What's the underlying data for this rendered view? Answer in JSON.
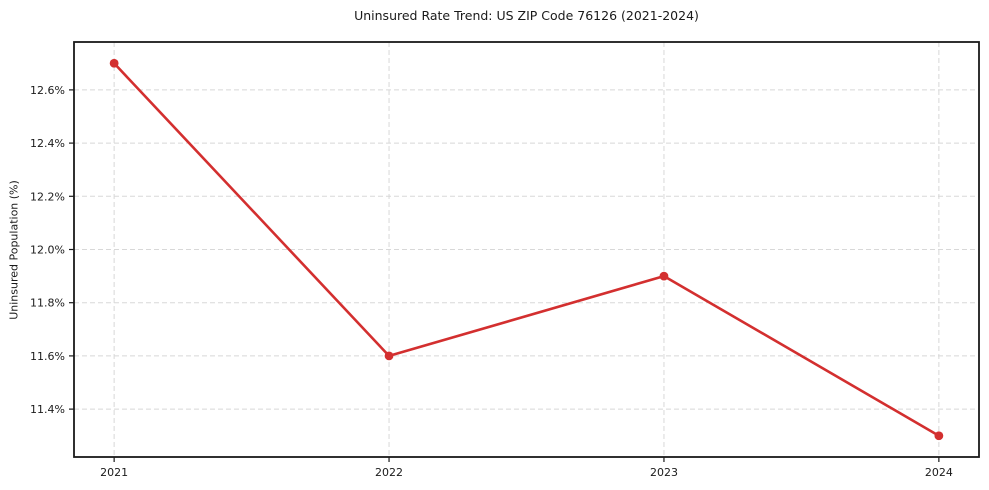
{
  "chart_data": {
    "type": "line",
    "title": "Uninsured Rate Trend: US ZIP Code 76126 (2021-2024)",
    "xlabel": "",
    "ylabel": "Uninsured Population (%)",
    "x": [
      2021,
      2022,
      2023,
      2024
    ],
    "x_tick_labels": [
      "2021",
      "2022",
      "2023",
      "2024"
    ],
    "series": [
      {
        "name": "uninsured-rate",
        "values": [
          12.7,
          11.6,
          11.9,
          11.3
        ],
        "color": "#d32f2f",
        "marker": "circle"
      }
    ],
    "y_ticks": [
      11.4,
      11.6,
      11.8,
      12.0,
      12.2,
      12.4,
      12.6
    ],
    "y_tick_labels": [
      "11.4%",
      "11.6%",
      "11.8%",
      "12.0%",
      "12.2%",
      "12.4%",
      "12.6%"
    ],
    "xlim": [
      2020.854,
      2024.146
    ],
    "ylim": [
      11.22,
      12.78
    ],
    "grid": true,
    "grid_style": "dashed",
    "legend": "none",
    "colors": {
      "line": "#d32f2f",
      "grid": "#d8d8d8",
      "axis": "#1a1a1a",
      "text": "#1a1a1a",
      "background": "#ffffff"
    }
  }
}
